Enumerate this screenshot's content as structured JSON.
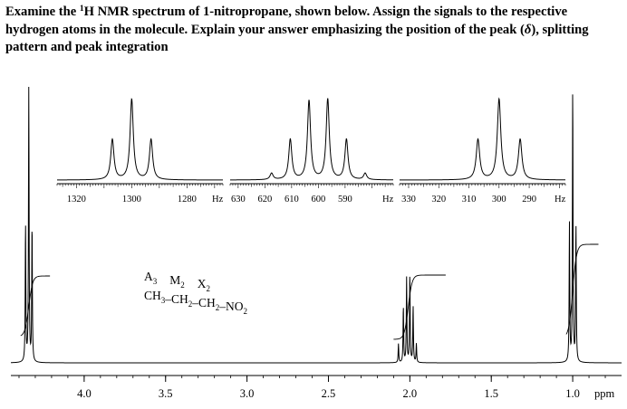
{
  "question": {
    "part1": "Examine the ",
    "sup": "1",
    "part2": "H NMR spectrum of 1-nitropropane, shown below.  Assign the signals to the respective hydrogen atoms in the molecule. Explain your answer emphasizing the position of the peak (",
    "delta": "δ",
    "part3": "), splitting pattern and peak integration"
  },
  "molecule": {
    "spin_labels": [
      {
        "letter": "A",
        "sub": "3"
      },
      {
        "letter": "M",
        "sub": "2"
      },
      {
        "letter": "X",
        "sub": "2"
      }
    ],
    "formula": [
      {
        "text": "CH",
        "sub": "3"
      },
      {
        "text": "–CH",
        "sub": "2"
      },
      {
        "text": "–CH",
        "sub": "2"
      },
      {
        "text": "–NO",
        "sub": "2"
      }
    ]
  },
  "chart_data": [
    {
      "type": "line",
      "xlabel": "ppm",
      "xlim": [
        4.45,
        0.7
      ],
      "x_ticks": [
        "4.0",
        "3.5",
        "3.0",
        "2.5",
        "2.0",
        "1.5",
        "1.0"
      ],
      "x_tick_values": [
        4.0,
        3.5,
        3.0,
        2.5,
        2.0,
        1.5,
        1.0
      ],
      "x_unit": "ppm",
      "peaks": [
        {
          "group": "X2",
          "center": 4.34,
          "multiplicity": "triplet",
          "lines": [
            4.36,
            4.34,
            4.32
          ],
          "rel_heights": [
            0.5,
            1.0,
            0.5
          ],
          "integration": 2
        },
        {
          "group": "M2",
          "center": 2.01,
          "multiplicity": "sextet",
          "lines": [
            2.07,
            2.04,
            2.02,
            2.0,
            1.98,
            1.96
          ],
          "rel_heights": [
            0.2,
            0.6,
            0.9,
            0.95,
            0.6,
            0.2
          ],
          "integration": 2
        },
        {
          "group": "A3",
          "center": 1.0,
          "multiplicity": "triplet",
          "lines": [
            1.02,
            1.0,
            0.98
          ],
          "rel_heights": [
            0.5,
            1.0,
            0.5
          ],
          "integration": 3
        }
      ]
    },
    {
      "type": "line",
      "xlabel": "Hz",
      "xlim": [
        1327,
        1267
      ],
      "x_ticks": [
        "1320",
        "1300",
        "1280"
      ],
      "x_tick_values": [
        1320,
        1300,
        1280
      ],
      "lines_hz": [
        1307,
        1300,
        1293
      ],
      "rel_heights": [
        0.5,
        1.0,
        0.5
      ]
    },
    {
      "type": "line",
      "xlabel": "Hz",
      "xlim": [
        633,
        572
      ],
      "x_ticks": [
        "630",
        "620",
        "610",
        "600",
        "590"
      ],
      "x_tick_values": [
        630,
        620,
        610,
        600,
        590
      ],
      "lines_hz": [
        617.5,
        610.5,
        603.5,
        596.5,
        589.5,
        582.5
      ],
      "rel_heights": [
        0.08,
        0.5,
        0.98,
        1.0,
        0.5,
        0.08
      ]
    },
    {
      "type": "line",
      "xlabel": "Hz",
      "xlim": [
        333,
        278
      ],
      "x_ticks": [
        "330",
        "320",
        "310",
        "300",
        "290"
      ],
      "x_tick_values": [
        330,
        320,
        310,
        300,
        290
      ],
      "lines_hz": [
        307,
        300,
        293
      ],
      "rel_heights": [
        0.5,
        1.0,
        0.5
      ]
    }
  ]
}
